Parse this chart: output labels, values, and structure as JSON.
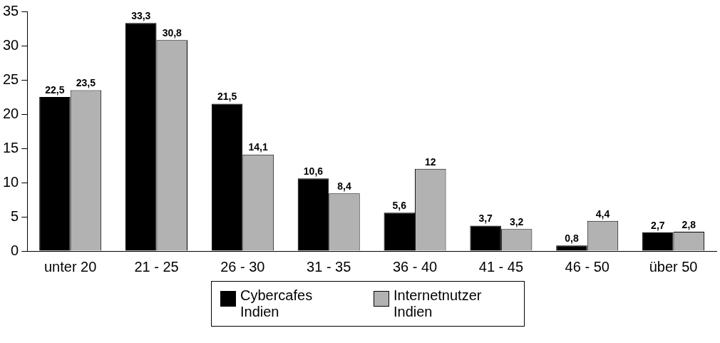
{
  "chart_data": {
    "type": "bar",
    "categories": [
      "unter 20",
      "21 - 25",
      "26 - 30",
      "31 - 35",
      "36 - 40",
      "41 - 45",
      "46 - 50",
      "über 50"
    ],
    "series": [
      {
        "name": "Cybercafes Indien",
        "color": "#000000",
        "values": [
          22.5,
          33.3,
          21.5,
          10.6,
          5.6,
          3.7,
          0.8,
          2.7
        ],
        "value_labels": [
          "22,5",
          "33,3",
          "21,5",
          "10,6",
          "5,6",
          "3,7",
          "0,8",
          "2,7"
        ]
      },
      {
        "name": "Internetnutzer Indien",
        "color": "#b2b2b2",
        "values": [
          23.5,
          30.8,
          14.1,
          8.4,
          12,
          3.2,
          4.4,
          2.8
        ],
        "value_labels": [
          "23,5",
          "30,8",
          "14,1",
          "8,4",
          "12",
          "3,2",
          "4,4",
          "2,8"
        ]
      }
    ],
    "ylim": [
      0,
      35
    ],
    "yticks": [
      0,
      5,
      10,
      15,
      20,
      25,
      30,
      35
    ],
    "grid": false,
    "legend": "bottom"
  }
}
